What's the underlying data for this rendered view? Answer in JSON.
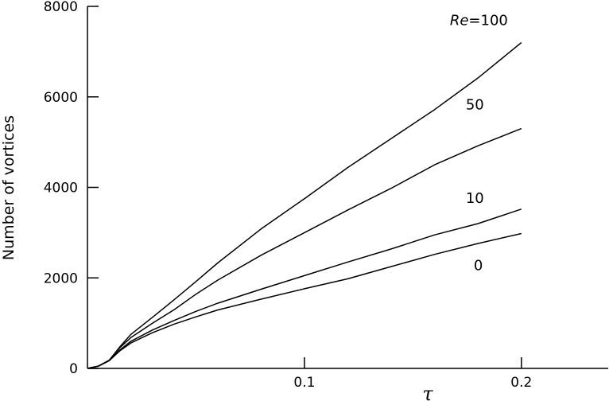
{
  "chart_data": {
    "type": "line",
    "xlabel": "τ",
    "ylabel": "Number of vortices",
    "xlim": [
      0,
      0.24
    ],
    "ylim": [
      0,
      8000
    ],
    "xticks": [
      0.1,
      0.2
    ],
    "xtick_labels": [
      "0.1",
      "0.2"
    ],
    "yticks": [
      0,
      2000,
      4000,
      6000,
      8000
    ],
    "ytick_labels": [
      "0",
      "2000",
      "4000",
      "6000",
      "8000"
    ],
    "grid": false,
    "legend": "none (series labeled inline)",
    "series": [
      {
        "name": "Re=100",
        "label_prefix": "Re",
        "label_rest": "=100",
        "x": [
          0,
          0.005,
          0.01,
          0.015,
          0.02,
          0.03,
          0.04,
          0.05,
          0.06,
          0.08,
          0.1,
          0.12,
          0.14,
          0.16,
          0.18,
          0.2
        ],
        "y": [
          0,
          50,
          180,
          480,
          750,
          1130,
          1520,
          1920,
          2330,
          3080,
          3750,
          4440,
          5080,
          5720,
          6420,
          7200
        ]
      },
      {
        "name": "50",
        "x": [
          0,
          0.005,
          0.01,
          0.015,
          0.02,
          0.03,
          0.04,
          0.05,
          0.06,
          0.08,
          0.1,
          0.12,
          0.14,
          0.16,
          0.18,
          0.2
        ],
        "y": [
          0,
          50,
          180,
          460,
          680,
          1000,
          1300,
          1640,
          1950,
          2500,
          3000,
          3500,
          3980,
          4500,
          4920,
          5300
        ]
      },
      {
        "name": "10",
        "x": [
          0,
          0.005,
          0.01,
          0.015,
          0.02,
          0.03,
          0.04,
          0.05,
          0.06,
          0.08,
          0.1,
          0.12,
          0.14,
          0.16,
          0.18,
          0.2
        ],
        "y": [
          0,
          50,
          170,
          410,
          600,
          850,
          1060,
          1260,
          1440,
          1750,
          2050,
          2350,
          2640,
          2950,
          3200,
          3520
        ]
      },
      {
        "name": "0",
        "x": [
          0,
          0.005,
          0.01,
          0.015,
          0.02,
          0.03,
          0.04,
          0.05,
          0.06,
          0.08,
          0.1,
          0.12,
          0.14,
          0.16,
          0.18,
          0.2
        ],
        "y": [
          0,
          50,
          170,
          390,
          560,
          790,
          980,
          1140,
          1290,
          1530,
          1760,
          1980,
          2250,
          2520,
          2760,
          2980
        ]
      }
    ],
    "colors": {
      "line": "#000000",
      "axis": "#000000",
      "background": "#ffffff"
    }
  }
}
